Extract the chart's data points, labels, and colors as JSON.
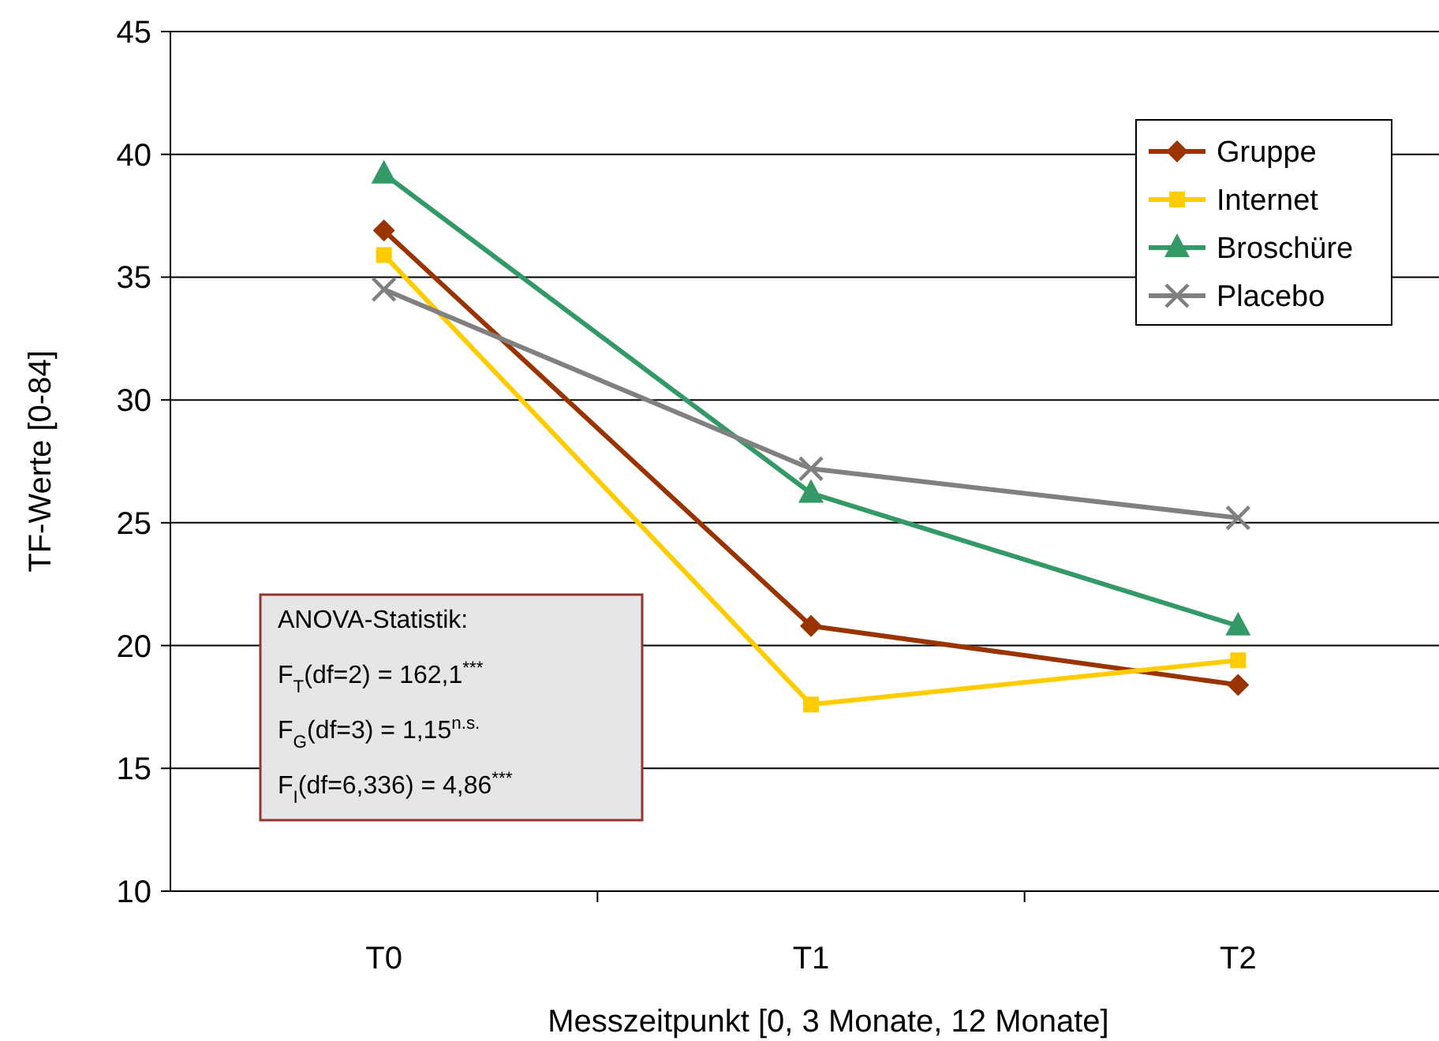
{
  "chart_data": {
    "type": "line",
    "xlabel": "Messzeitpunkt   [0,  3 Monate, 12 Monate]",
    "ylabel": "TF-Werte [0-84]",
    "categories": [
      "T0",
      "T1",
      "T2"
    ],
    "ylim": [
      10,
      45
    ],
    "yticks": [
      10,
      15,
      20,
      25,
      30,
      35,
      40,
      45
    ],
    "grid": "y",
    "legend": "top right",
    "series": [
      {
        "name": "Gruppe",
        "color": "#993300",
        "marker": "diamond",
        "values": [
          36.9,
          20.8,
          18.4
        ]
      },
      {
        "name": "Internet",
        "color": "#ffcc00",
        "marker": "square",
        "values": [
          35.9,
          17.6,
          19.4
        ]
      },
      {
        "name": "Broschüre",
        "color": "#339966",
        "marker": "triangle",
        "values": [
          39.2,
          26.2,
          20.8
        ]
      },
      {
        "name": "Placebo",
        "color": "#808080",
        "marker": "cross",
        "values": [
          34.5,
          27.2,
          25.2
        ]
      }
    ],
    "annotations": [
      "ANOVA-Statistik:",
      "F$_{T}$(df=2) = 162,1$^{***}$",
      "F$_{G}$(df=3) = 1,15$^{n.s.}$",
      "F$_{I}$(df=6,336) = 4,86$^{***}$"
    ]
  }
}
